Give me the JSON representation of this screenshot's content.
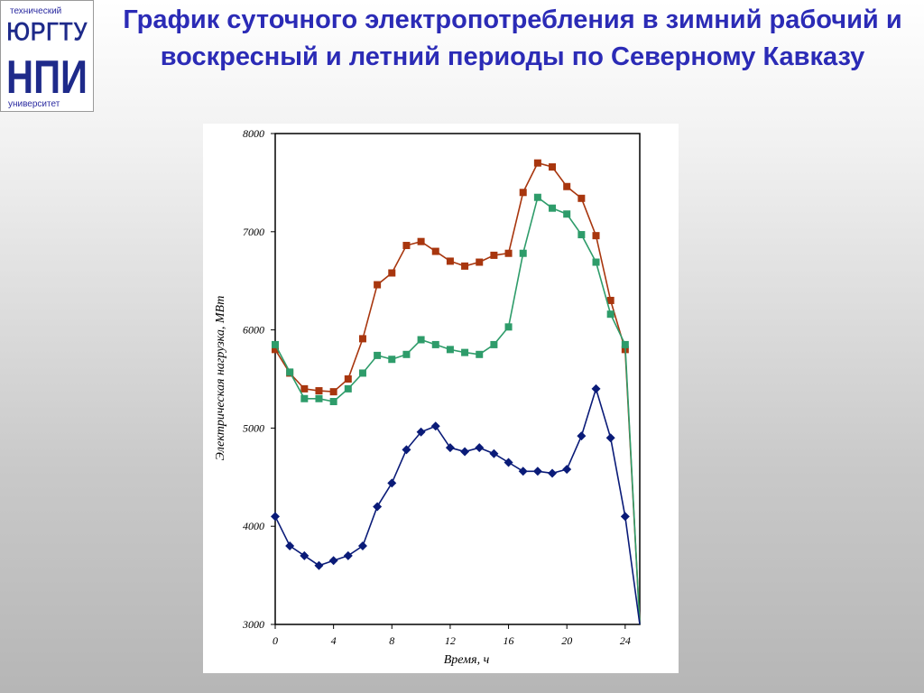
{
  "logo": {
    "top_text": "технический",
    "line1": "ЮРГТУ",
    "line2": "НПИ",
    "bottom_text": "университет"
  },
  "slide": {
    "title": "График суточного электропотребления в зимний рабочий и воскресный и летний периоды по Северному Кавказу"
  },
  "chart_data": {
    "type": "line",
    "xlabel": "Время, ч",
    "ylabel": "Электрическая нагрузка, МВт",
    "xlim": [
      0,
      25
    ],
    "ylim": [
      3000,
      8000
    ],
    "xticks": [
      0,
      4,
      8,
      12,
      16,
      20,
      24
    ],
    "yticks": [
      3000,
      4000,
      5000,
      6000,
      7000,
      8000
    ],
    "grid": true,
    "colors": {
      "winter_workday": "#a8360e",
      "winter_sunday": "#2e9c6a",
      "summer": "#0a1b78"
    },
    "series": [
      {
        "key": "winter_workday",
        "marker": "square",
        "x": [
          0,
          1,
          2,
          3,
          4,
          5,
          6,
          7,
          8,
          9,
          10,
          11,
          12,
          13,
          14,
          15,
          16,
          17,
          18,
          19,
          20,
          21,
          22,
          23,
          24,
          25
        ],
        "values": [
          5800,
          5560,
          5400,
          5380,
          5370,
          5500,
          5910,
          6460,
          6580,
          6860,
          6900,
          6800,
          6700,
          6650,
          6690,
          6760,
          6780,
          7400,
          7700,
          7660,
          7460,
          7340,
          6960,
          6300,
          5800,
          3000
        ]
      },
      {
        "key": "winter_sunday",
        "marker": "square",
        "x": [
          0,
          1,
          2,
          3,
          4,
          5,
          6,
          7,
          8,
          9,
          10,
          11,
          12,
          13,
          14,
          15,
          16,
          17,
          18,
          19,
          20,
          21,
          22,
          23,
          24,
          25
        ],
        "values": [
          5850,
          5570,
          5300,
          5300,
          5270,
          5400,
          5560,
          5740,
          5700,
          5750,
          5900,
          5850,
          5800,
          5770,
          5750,
          5850,
          6030,
          6780,
          7350,
          7240,
          7180,
          6970,
          6690,
          6160,
          5850,
          3000
        ]
      },
      {
        "key": "summer",
        "marker": "diamond",
        "x": [
          0,
          1,
          2,
          3,
          4,
          5,
          6,
          7,
          8,
          9,
          10,
          11,
          12,
          13,
          14,
          15,
          16,
          17,
          18,
          19,
          20,
          21,
          22,
          23,
          24,
          25
        ],
        "values": [
          4100,
          3800,
          3700,
          3600,
          3650,
          3700,
          3800,
          4200,
          4440,
          4780,
          4960,
          5020,
          4800,
          4760,
          4800,
          4740,
          4650,
          4560,
          4560,
          4540,
          4580,
          4920,
          5400,
          4900,
          4100,
          3000
        ]
      }
    ]
  }
}
